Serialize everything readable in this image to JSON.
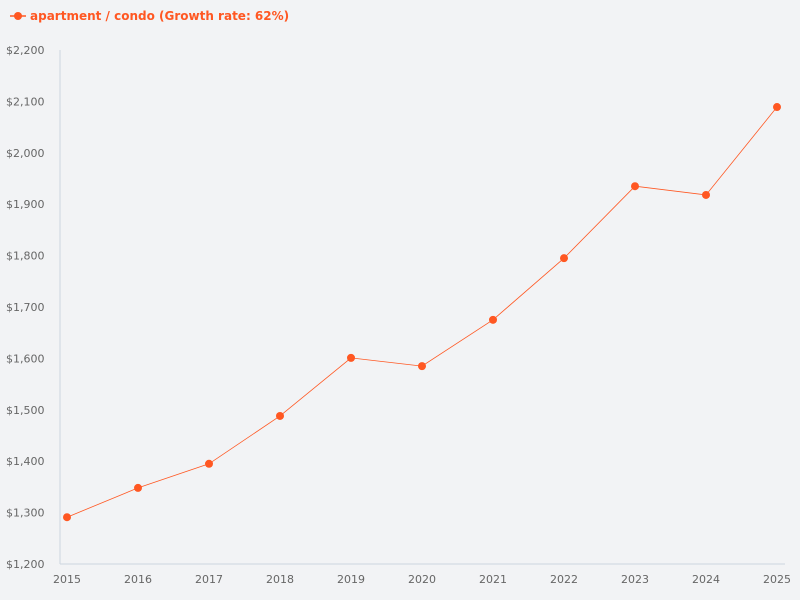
{
  "chart_data": {
    "type": "line",
    "legend_label": "apartment / condo (Growth rate: 62%)",
    "legend_placement": "top-left",
    "color": "#ff5722",
    "x": [
      "2015",
      "2016",
      "2017",
      "2018",
      "2019",
      "2020",
      "2021",
      "2022",
      "2023",
      "2024",
      "2025"
    ],
    "series": [
      {
        "name": "apartment / condo (Growth rate: 62%)",
        "values": [
          1291,
          1348,
          1395,
          1488,
          1601,
          1585,
          1675,
          1795,
          1935,
          1918,
          2089
        ]
      }
    ],
    "ylim": [
      1200,
      2200
    ],
    "yticks": [
      "$1,200",
      "$1,300",
      "$1,400",
      "$1,500",
      "$1,600",
      "$1,700",
      "$1,800",
      "$1,900",
      "$2,000",
      "$2,100",
      "$2,200"
    ],
    "grid": false
  }
}
